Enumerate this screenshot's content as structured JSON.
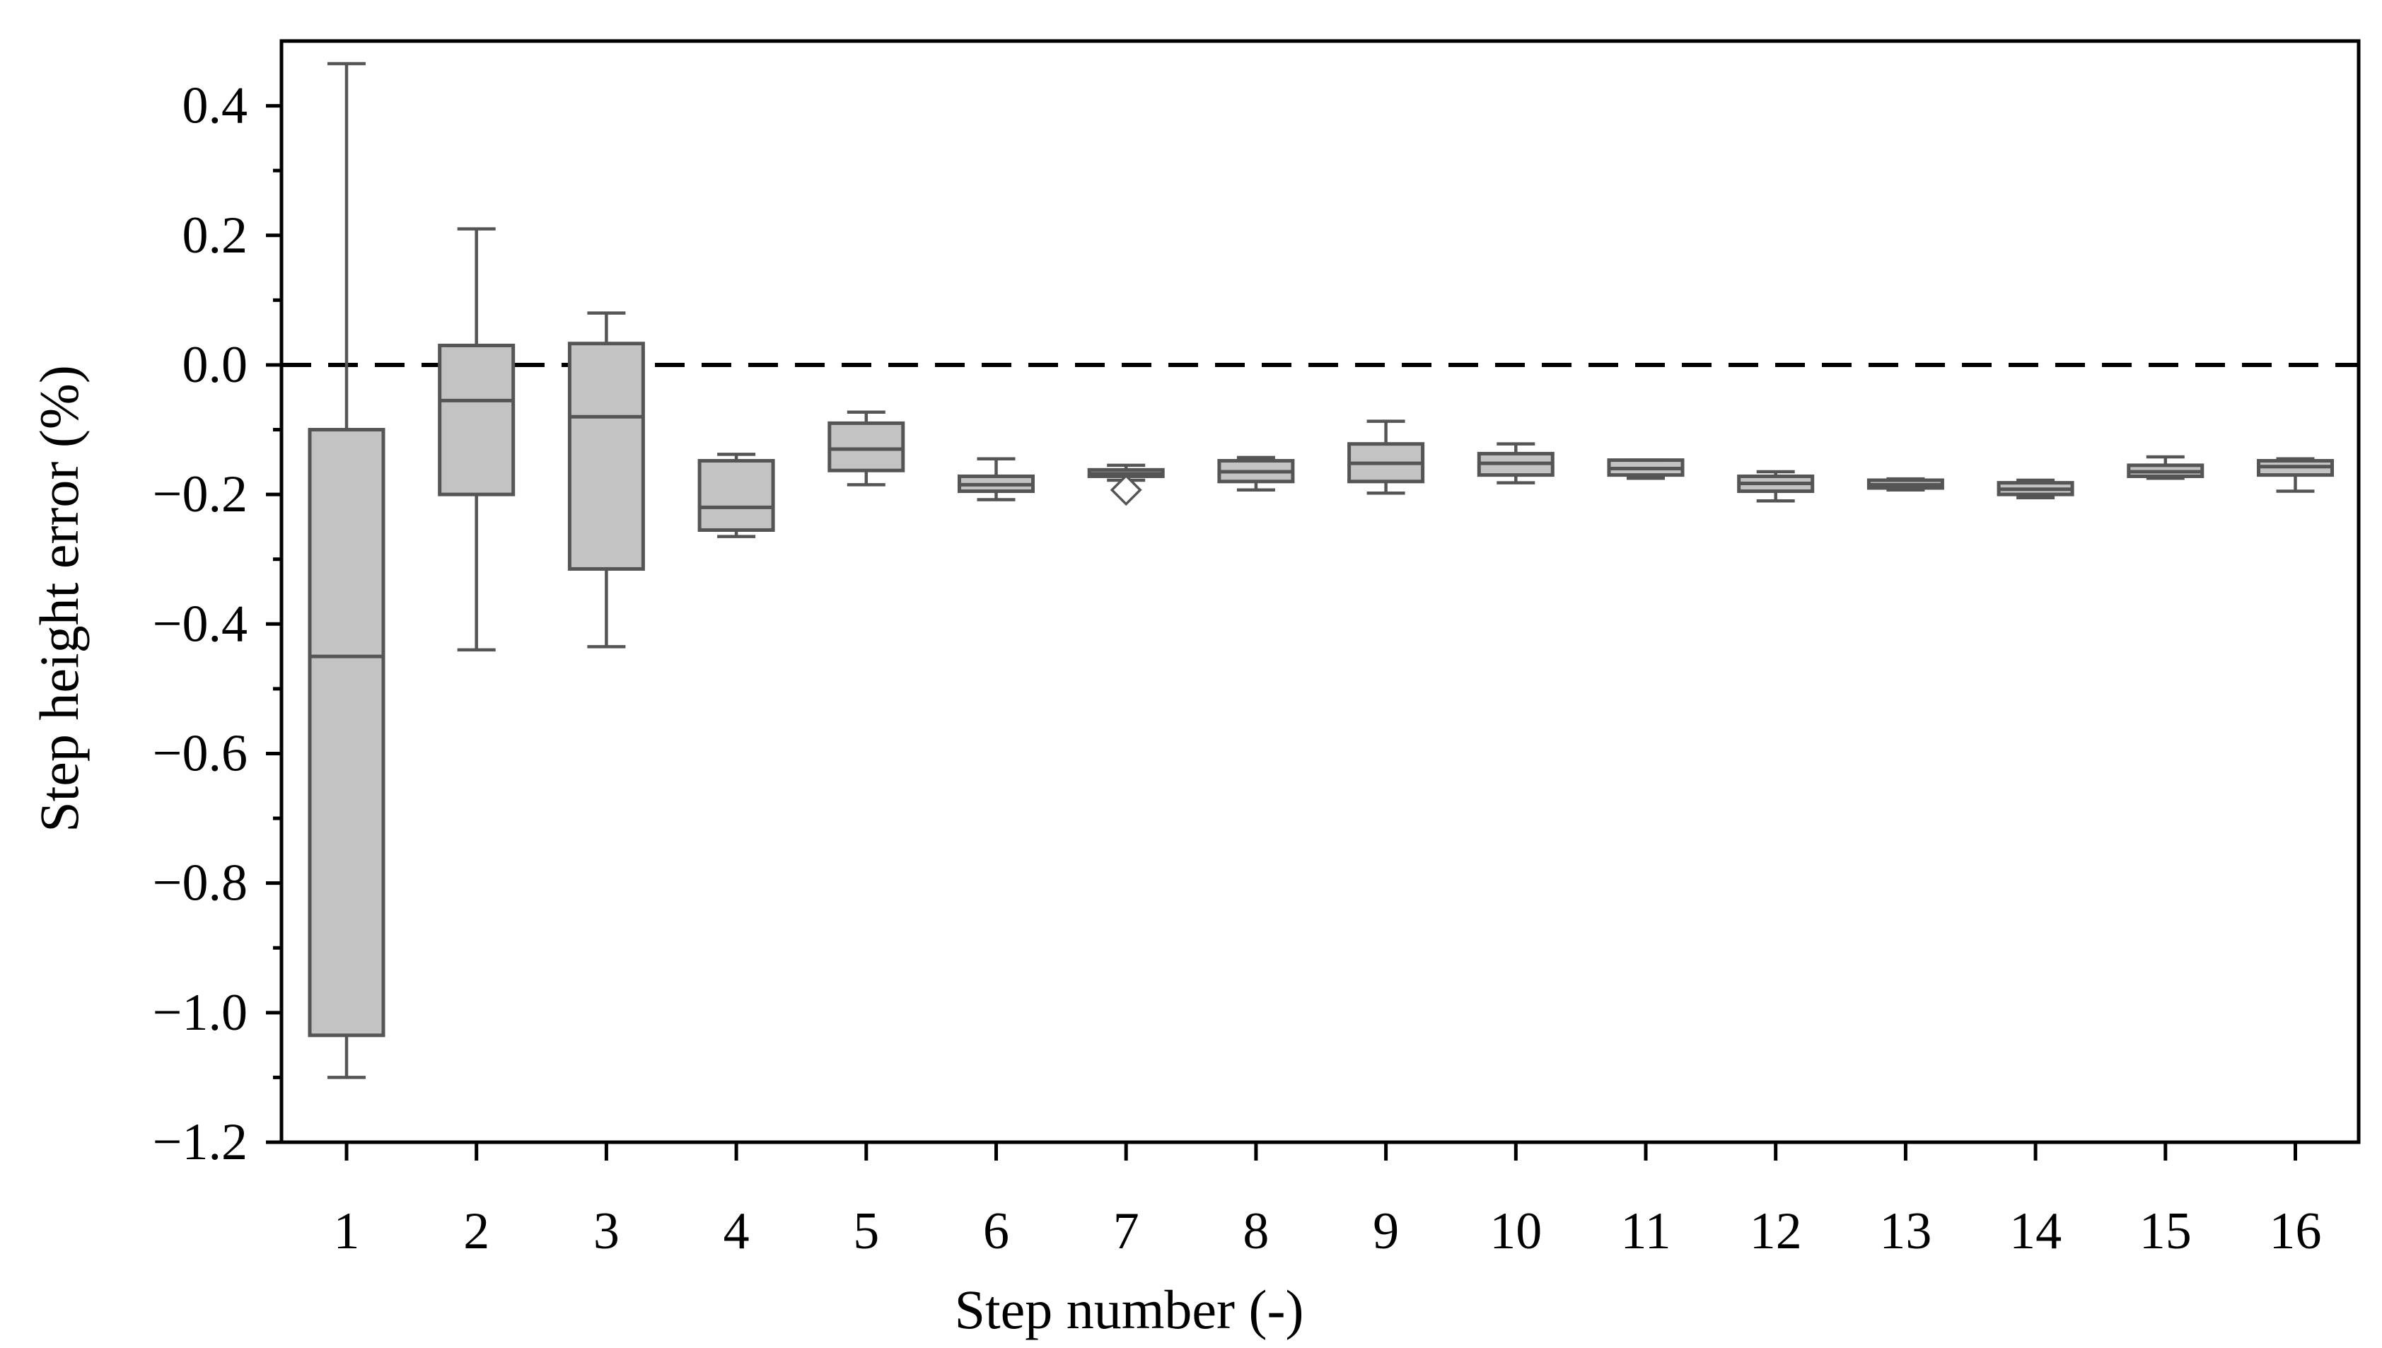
{
  "chart_data": {
    "type": "box",
    "xlabel": "Step number (-)",
    "ylabel": "Step height error (%)",
    "ylim": [
      -1.2,
      0.5
    ],
    "yticks": [
      -1.2,
      -1.0,
      -0.8,
      -0.6,
      -0.4,
      -0.2,
      0.0,
      0.2,
      0.4
    ],
    "ytick_labels": [
      "−1.2",
      "−1.0",
      "−0.8",
      "−0.6",
      "−0.4",
      "−0.2",
      "0.0",
      "0.2",
      "0.4"
    ],
    "categories": [
      "1",
      "2",
      "3",
      "4",
      "5",
      "6",
      "7",
      "8",
      "9",
      "10",
      "11",
      "12",
      "13",
      "14",
      "15",
      "16"
    ],
    "reference_line": {
      "y": 0.0,
      "style": "dashed"
    },
    "box_color": "#c3c3c3",
    "line_color": "#555555",
    "boxes": [
      {
        "min": -1.1,
        "q1": -1.035,
        "median": -0.45,
        "q3": -0.1,
        "max": 0.465
      },
      {
        "min": -0.44,
        "q1": -0.2,
        "median": -0.055,
        "q3": 0.03,
        "max": 0.21
      },
      {
        "min": -0.435,
        "q1": -0.315,
        "median": -0.08,
        "q3": 0.033,
        "max": 0.08
      },
      {
        "min": -0.265,
        "q1": -0.255,
        "median": -0.22,
        "q3": -0.148,
        "max": -0.138
      },
      {
        "min": -0.185,
        "q1": -0.163,
        "median": -0.13,
        "q3": -0.09,
        "max": -0.073
      },
      {
        "min": -0.208,
        "q1": -0.195,
        "median": -0.185,
        "q3": -0.172,
        "max": -0.145
      },
      {
        "min": -0.178,
        "q1": -0.172,
        "median": -0.168,
        "q3": -0.162,
        "max": -0.155,
        "outliers": [
          -0.193
        ]
      },
      {
        "min": -0.193,
        "q1": -0.18,
        "median": -0.165,
        "q3": -0.148,
        "max": -0.143
      },
      {
        "min": -0.198,
        "q1": -0.18,
        "median": -0.152,
        "q3": -0.122,
        "max": -0.087
      },
      {
        "min": -0.182,
        "q1": -0.17,
        "median": -0.152,
        "q3": -0.137,
        "max": -0.122
      },
      {
        "min": -0.175,
        "q1": -0.17,
        "median": -0.16,
        "q3": -0.147,
        "max": -0.147
      },
      {
        "min": -0.21,
        "q1": -0.195,
        "median": -0.183,
        "q3": -0.172,
        "max": -0.165
      },
      {
        "min": -0.193,
        "q1": -0.19,
        "median": -0.185,
        "q3": -0.178,
        "max": -0.176
      },
      {
        "min": -0.205,
        "q1": -0.2,
        "median": -0.192,
        "q3": -0.182,
        "max": -0.178
      },
      {
        "min": -0.175,
        "q1": -0.172,
        "median": -0.165,
        "q3": -0.155,
        "max": -0.142
      },
      {
        "min": -0.195,
        "q1": -0.17,
        "median": -0.157,
        "q3": -0.148,
        "max": -0.145
      }
    ]
  }
}
